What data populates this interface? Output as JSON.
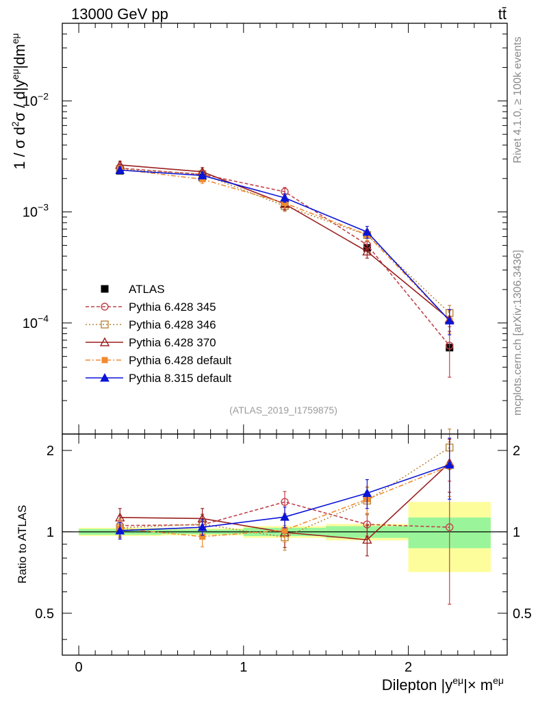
{
  "header": {
    "left": "13000 GeV pp",
    "right": "tt̄"
  },
  "side_labels": {
    "rivet": "Rivet 4.1.0, ≥ 100k events",
    "mcplots": "mcplots.cern.ch [arXiv:1306.3436]"
  },
  "watermark": "(ATLAS_2019_I1759875)",
  "chart_data": {
    "type": "line",
    "title": "13000 GeV pp",
    "process": "tt̄",
    "ylabel": "1 / σ  d²σ / d|y^eμ|dm^eμ",
    "ylabel_parts": {
      "base1": "1 / σ  d",
      "sup1": "2",
      "base2": "σ / d|y",
      "sup2": "eμ",
      "base3": "|dm",
      "sup3": "eμ"
    },
    "xlabel": "Dilepton |y^eμ|× m^eμ",
    "xlabel_parts": {
      "base1": "Dilepton |y",
      "sup1": "eμ",
      "base2": "|× m",
      "sup2": "eμ"
    },
    "ratio_ylabel": "Ratio to ATLAS",
    "xlim": [
      -0.1,
      2.6
    ],
    "ylim_main": [
      1e-05,
      0.05
    ],
    "ylim_ratio": [
      0.35,
      2.3
    ],
    "y_scale": "log",
    "x_ticks": [
      {
        "value": 0,
        "label": "0"
      },
      {
        "value": 1,
        "label": "1"
      },
      {
        "value": 2,
        "label": "2"
      }
    ],
    "y_ticks_main": [
      {
        "value": 0.01,
        "base": "10",
        "exp": "−2"
      },
      {
        "value": 0.001,
        "base": "10",
        "exp": "−3"
      },
      {
        "value": 0.0001,
        "base": "10",
        "exp": "−4"
      }
    ],
    "y_ticks_ratio": [
      {
        "value": 0.5,
        "label": "0.5"
      },
      {
        "value": 1,
        "label": "1"
      },
      {
        "value": 2,
        "label": "2"
      }
    ],
    "x": [
      0.25,
      0.75,
      1.25,
      1.75,
      2.25
    ],
    "bin_edges": [
      0,
      0.5,
      1.0,
      1.5,
      2.0,
      2.5
    ],
    "reference": {
      "name": "ATLAS",
      "color": "#000000",
      "values": [
        0.00235,
        0.00205,
        0.00118,
        0.000475,
        6e-05
      ],
      "ratio_band_inner": [
        0.025,
        0.02,
        0.035,
        0.05,
        0.13
      ],
      "ratio_band_outer": [
        0.035,
        0.03,
        0.05,
        0.07,
        0.29
      ]
    },
    "series": [
      {
        "name": "Pythia 6.428 345",
        "color": "#c0404a",
        "dash": "5,3",
        "marker": "circle-open",
        "values": [
          0.00248,
          0.00218,
          0.00152,
          0.000505,
          6.25e-05
        ],
        "ratio": [
          1.055,
          1.062,
          1.29,
          1.065,
          1.04
        ],
        "ratio_err": [
          0.09,
          0.1,
          0.12,
          0.1,
          0.5
        ]
      },
      {
        "name": "Pythia 6.428 346",
        "color": "#b8863c",
        "dash": "2,3",
        "marker": "square-open",
        "values": [
          0.00243,
          0.00219,
          0.00113,
          0.00062,
          0.000123
        ],
        "ratio": [
          1.035,
          1.068,
          0.955,
          1.305,
          2.05
        ],
        "ratio_err": [
          0.08,
          0.09,
          0.1,
          0.15,
          0.35
        ]
      },
      {
        "name": "Pythia 6.428 370",
        "color": "#9a1f1f",
        "dash": "",
        "marker": "triangle-open",
        "values": [
          0.00265,
          0.0023,
          0.00118,
          0.00044,
          0.000108
        ],
        "ratio": [
          1.13,
          1.12,
          0.995,
          0.935,
          1.8
        ],
        "ratio_err": [
          0.09,
          0.1,
          0.12,
          0.12,
          0.4
        ]
      },
      {
        "name": "Pythia 6.428 default",
        "color": "#f08a30",
        "dash": "7,3,2,3",
        "marker": "square-filled",
        "values": [
          0.00242,
          0.00197,
          0.0012,
          0.000625,
          0.000105
        ],
        "ratio": [
          1.03,
          0.96,
          1.015,
          1.32,
          1.75
        ],
        "ratio_err": [
          0.08,
          0.08,
          0.1,
          0.15,
          0.4
        ]
      },
      {
        "name": "Pythia 8.315 default",
        "color": "#0a14d6",
        "dash": "",
        "marker": "triangle-filled",
        "values": [
          0.00238,
          0.00213,
          0.00134,
          0.00066,
          0.000105
        ],
        "ratio": [
          1.01,
          1.04,
          1.135,
          1.39,
          1.77
        ],
        "ratio_err": [
          0.07,
          0.07,
          0.1,
          0.17,
          0.45
        ]
      }
    ],
    "legend_position": "lower-left"
  }
}
